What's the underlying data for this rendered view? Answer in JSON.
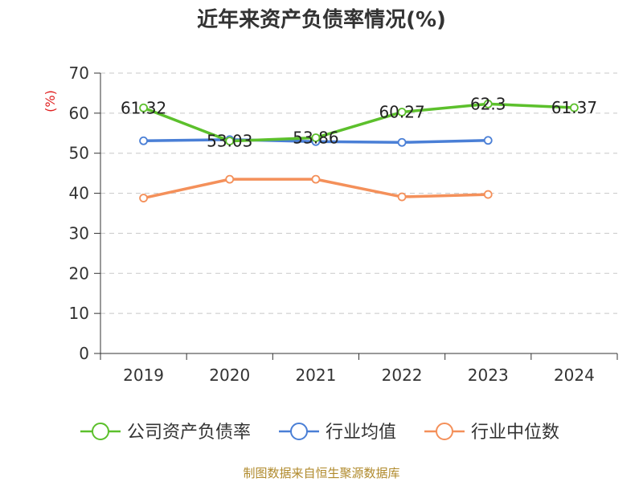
{
  "chart_data": {
    "type": "line",
    "title": "近年来资产负债率情况(%)",
    "ylabel": "(%)",
    "ylim": [
      0,
      70
    ],
    "yticks": [
      0,
      10,
      20,
      30,
      40,
      50,
      60,
      70
    ],
    "grid": true,
    "legend_position": "bottom",
    "categories": [
      "2019",
      "2020",
      "2021",
      "2022",
      "2023",
      "2024"
    ],
    "series": [
      {
        "name": "公司资产负债率",
        "color": "#5cc02c",
        "values": [
          61.32,
          53.03,
          53.86,
          60.27,
          62.3,
          61.37
        ],
        "labels": [
          "61.32",
          "53.03",
          "53.86",
          "60.27",
          "62.3",
          "61.37"
        ]
      },
      {
        "name": "行业均值",
        "color": "#4a7fd6",
        "values": [
          53.1,
          53.4,
          52.9,
          52.7,
          53.2,
          null
        ]
      },
      {
        "name": "行业中位数",
        "color": "#f4905a",
        "values": [
          38.8,
          43.5,
          43.5,
          39.1,
          39.7,
          null
        ]
      }
    ]
  },
  "source": "制图数据来自恒生聚源数据库"
}
